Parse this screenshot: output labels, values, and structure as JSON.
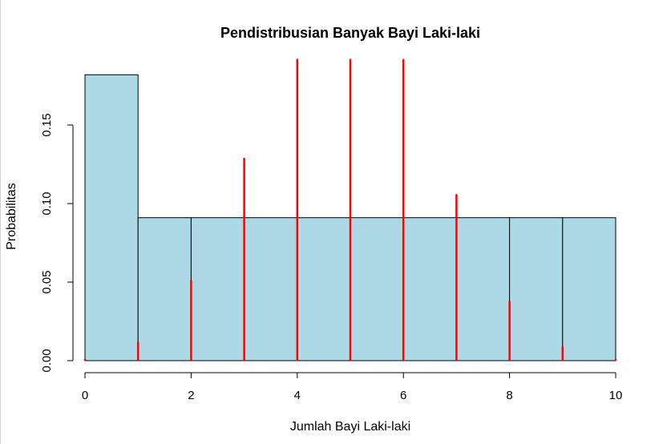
{
  "chart_data": {
    "type": "bar",
    "title": "Pendistribusian Banyak Bayi Laki-laki",
    "xlabel": "Jumlah Bayi Laki-laki",
    "ylabel": "Probabilitas",
    "xlim": [
      0,
      10
    ],
    "ylim": [
      0,
      0.19
    ],
    "x_ticks": [
      "0",
      "2",
      "4",
      "6",
      "8",
      "10"
    ],
    "y_ticks": [
      "0.00",
      "0.05",
      "0.10",
      "0.15"
    ],
    "histogram": {
      "fill_color": "#add8e6",
      "bins": [
        {
          "from": 0,
          "to": 1,
          "density": 0.182
        },
        {
          "from": 1,
          "to": 2,
          "density": 0.091
        },
        {
          "from": 2,
          "to": 8,
          "density": 0.091
        },
        {
          "from": 8,
          "to": 9,
          "density": 0.091
        },
        {
          "from": 9,
          "to": 10,
          "density": 0.091
        }
      ]
    },
    "series": [
      {
        "color": "#ff0000",
        "type": "spike",
        "x": [
          0,
          1,
          2,
          3,
          4,
          5,
          6,
          7,
          8,
          9,
          10
        ],
        "values": [
          0.001,
          0.012,
          0.051,
          0.129,
          0.192,
          0.192,
          0.192,
          0.106,
          0.038,
          0.009,
          0.001
        ]
      }
    ],
    "grid": false,
    "legend": "none"
  }
}
